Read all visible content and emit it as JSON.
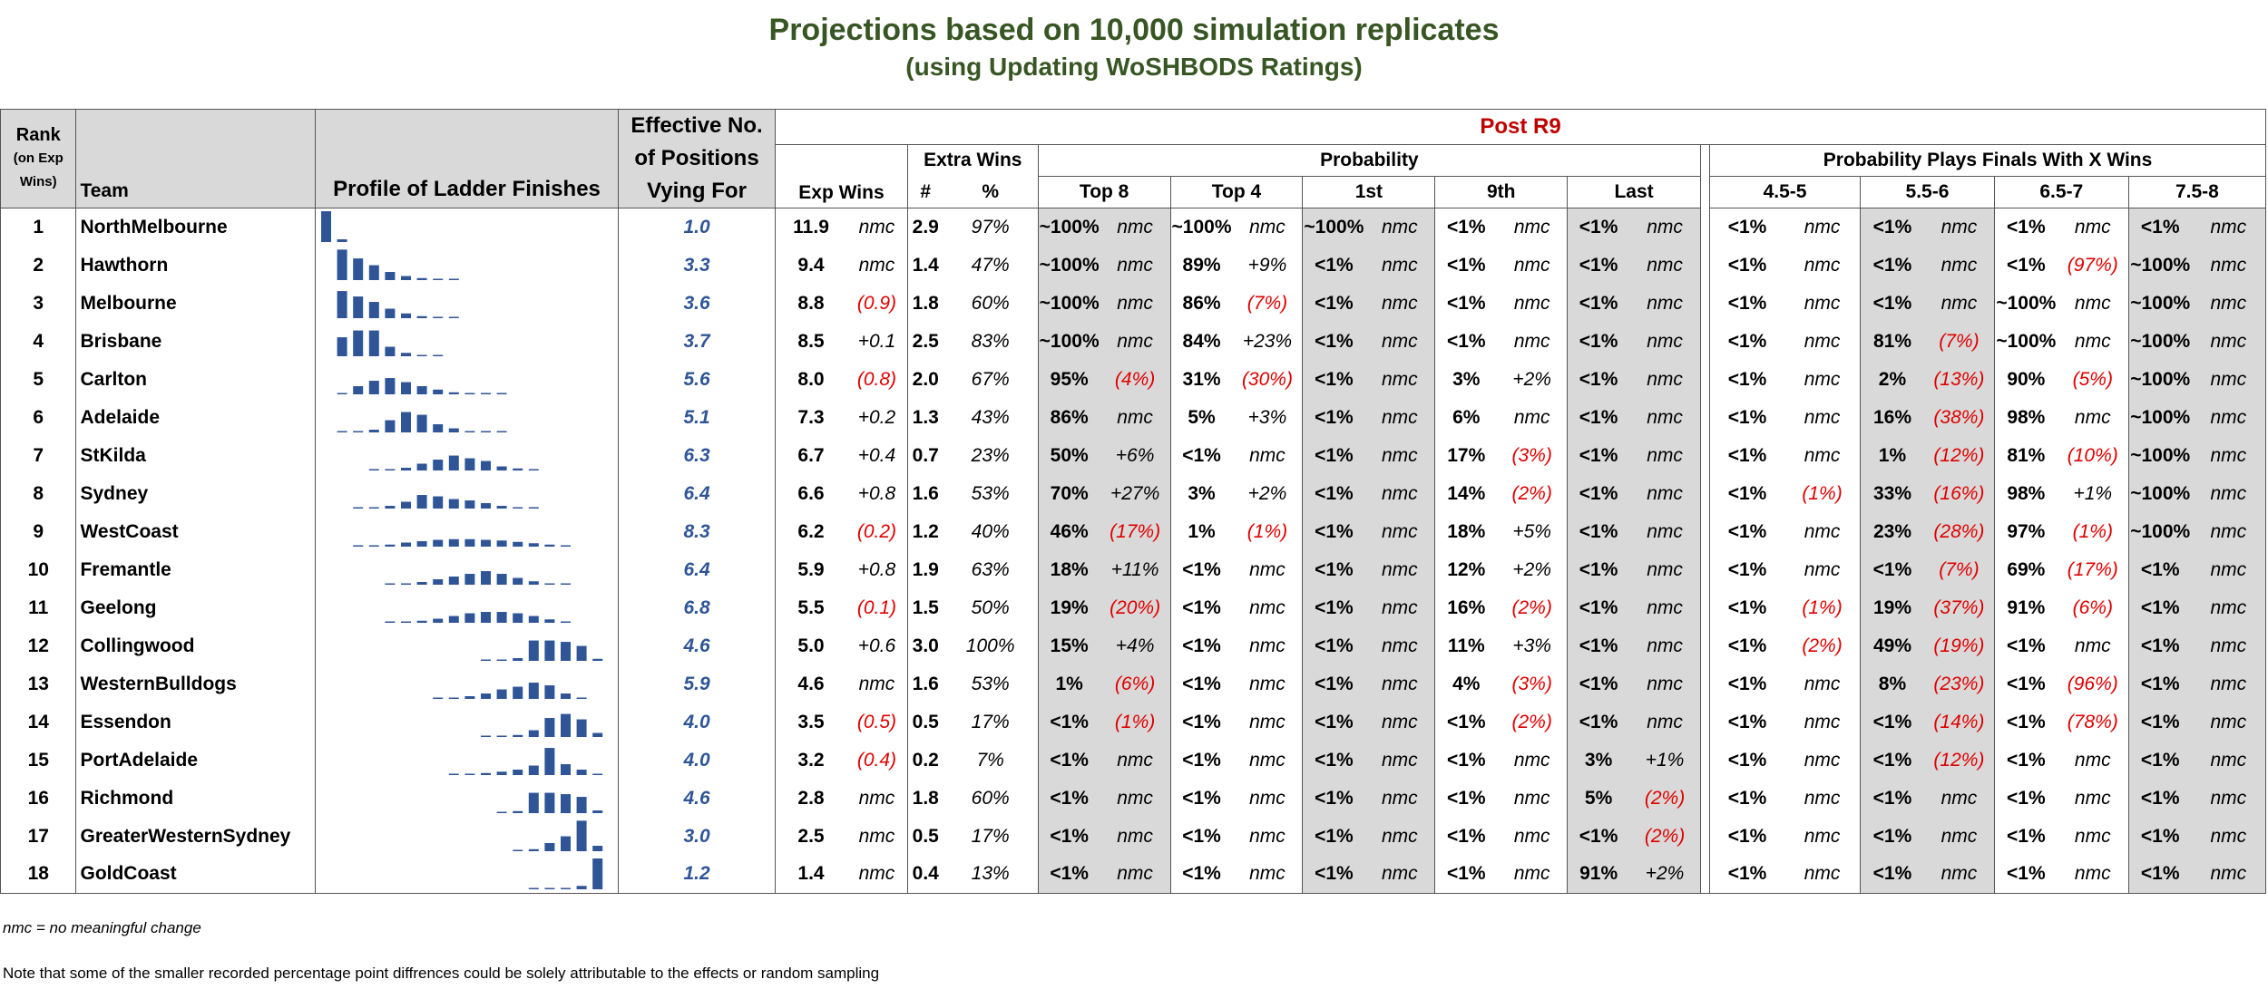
{
  "title": "Projections based on 10,000 simulation replicates",
  "subtitle": "(using Updating WoSHBODS Ratings)",
  "headers": {
    "rank_line1": "Rank",
    "rank_line2": "(on Exp",
    "rank_line3": "Wins)",
    "team": "Team",
    "profile": "Profile of Ladder Finishes",
    "eff_line1": "Effective No.",
    "eff_line2": "of Positions",
    "eff_line3": "Vying For",
    "post": "Post R9",
    "exp_wins": "Exp Wins",
    "extra_wins": "Extra Wins",
    "extra_num": "#",
    "extra_pct": "%",
    "probability": "Probability",
    "prob_cols": [
      "Top 8",
      "Top 4",
      "1st",
      "9th",
      "Last"
    ],
    "finals": "Probability Plays Finals With X Wins",
    "finals_cols": [
      "4.5-5",
      "5.5-6",
      "6.5-7",
      "7.5-8"
    ]
  },
  "rows": [
    {
      "rank": "1",
      "team": "NorthMelbourne",
      "eff": "1.0",
      "exp": "11.9",
      "exp_c": "nmc",
      "ew": "2.9",
      "ew_pct": "97%",
      "p": [
        [
          "~100%",
          "nmc"
        ],
        [
          "~100%",
          "nmc"
        ],
        [
          "~100%",
          "nmc"
        ],
        [
          "<1%",
          "nmc"
        ],
        [
          "<1%",
          "nmc"
        ]
      ],
      "f": [
        [
          "<1%",
          "nmc"
        ],
        [
          "<1%",
          "nmc"
        ],
        [
          "<1%",
          "nmc"
        ],
        [
          "<1%",
          "nmc"
        ]
      ],
      "profile": [
        100,
        4,
        0,
        0,
        0,
        0,
        0,
        0,
        0,
        0,
        0,
        0,
        0,
        0,
        0,
        0,
        0,
        0
      ]
    },
    {
      "rank": "2",
      "team": "Hawthorn",
      "eff": "3.3",
      "exp": "9.4",
      "exp_c": "nmc",
      "ew": "1.4",
      "ew_pct": "47%",
      "p": [
        [
          "~100%",
          "nmc"
        ],
        [
          "89%",
          "+9%"
        ],
        [
          "<1%",
          "nmc"
        ],
        [
          "<1%",
          "nmc"
        ],
        [
          "<1%",
          "nmc"
        ]
      ],
      "f": [
        [
          "<1%",
          "nmc"
        ],
        [
          "<1%",
          "nmc"
        ],
        [
          "<1%",
          "(97%)"
        ],
        [
          "~100%",
          "nmc"
        ]
      ],
      "profile": [
        0,
        45,
        32,
        22,
        12,
        6,
        3,
        2,
        1,
        0,
        0,
        0,
        0,
        0,
        0,
        0,
        0,
        0
      ]
    },
    {
      "rank": "3",
      "team": "Melbourne",
      "eff": "3.6",
      "exp": "8.8",
      "exp_c": "(0.9)",
      "ew": "1.8",
      "ew_pct": "60%",
      "p": [
        [
          "~100%",
          "nmc"
        ],
        [
          "86%",
          "(7%)"
        ],
        [
          "<1%",
          "nmc"
        ],
        [
          "<1%",
          "nmc"
        ],
        [
          "<1%",
          "nmc"
        ]
      ],
      "f": [
        [
          "<1%",
          "nmc"
        ],
        [
          "<1%",
          "nmc"
        ],
        [
          "~100%",
          "nmc"
        ],
        [
          "~100%",
          "nmc"
        ]
      ],
      "profile": [
        0,
        40,
        32,
        24,
        14,
        7,
        3,
        2,
        1,
        0,
        0,
        0,
        0,
        0,
        0,
        0,
        0,
        0
      ]
    },
    {
      "rank": "4",
      "team": "Brisbane",
      "eff": "3.7",
      "exp": "8.5",
      "exp_c": "+0.1",
      "ew": "2.5",
      "ew_pct": "83%",
      "p": [
        [
          "~100%",
          "nmc"
        ],
        [
          "84%",
          "+23%"
        ],
        [
          "<1%",
          "nmc"
        ],
        [
          "<1%",
          "nmc"
        ],
        [
          "<1%",
          "nmc"
        ]
      ],
      "f": [
        [
          "<1%",
          "nmc"
        ],
        [
          "81%",
          "(7%)"
        ],
        [
          "~100%",
          "nmc"
        ],
        [
          "~100%",
          "nmc"
        ]
      ],
      "profile": [
        0,
        28,
        38,
        38,
        14,
        5,
        2,
        1,
        0,
        0,
        0,
        0,
        0,
        0,
        0,
        0,
        0,
        0
      ]
    },
    {
      "rank": "5",
      "team": "Carlton",
      "eff": "5.6",
      "exp": "8.0",
      "exp_c": "(0.8)",
      "ew": "2.0",
      "ew_pct": "67%",
      "p": [
        [
          "95%",
          "(4%)"
        ],
        [
          "31%",
          "(30%)"
        ],
        [
          "<1%",
          "nmc"
        ],
        [
          "3%",
          "+2%"
        ],
        [
          "<1%",
          "nmc"
        ]
      ],
      "f": [
        [
          "<1%",
          "nmc"
        ],
        [
          "2%",
          "(13%)"
        ],
        [
          "90%",
          "(5%)"
        ],
        [
          "~100%",
          "nmc"
        ]
      ],
      "profile": [
        0,
        2,
        12,
        20,
        24,
        18,
        12,
        7,
        3,
        2,
        1,
        1,
        0,
        0,
        0,
        0,
        0,
        0
      ]
    },
    {
      "rank": "6",
      "team": "Adelaide",
      "eff": "5.1",
      "exp": "7.3",
      "exp_c": "+0.2",
      "ew": "1.3",
      "ew_pct": "43%",
      "p": [
        [
          "86%",
          "nmc"
        ],
        [
          "5%",
          "+3%"
        ],
        [
          "<1%",
          "nmc"
        ],
        [
          "6%",
          "nmc"
        ],
        [
          "<1%",
          "nmc"
        ]
      ],
      "f": [
        [
          "<1%",
          "nmc"
        ],
        [
          "16%",
          "(38%)"
        ],
        [
          "98%",
          "nmc"
        ],
        [
          "~100%",
          "nmc"
        ]
      ],
      "profile": [
        0,
        1,
        2,
        4,
        18,
        30,
        26,
        12,
        6,
        2,
        1,
        1,
        0,
        0,
        0,
        0,
        0,
        0
      ]
    },
    {
      "rank": "7",
      "team": "StKilda",
      "eff": "6.3",
      "exp": "6.7",
      "exp_c": "+0.4",
      "ew": "0.7",
      "ew_pct": "23%",
      "p": [
        [
          "50%",
          "+6%"
        ],
        [
          "<1%",
          "nmc"
        ],
        [
          "<1%",
          "nmc"
        ],
        [
          "17%",
          "(3%)"
        ],
        [
          "<1%",
          "nmc"
        ]
      ],
      "f": [
        [
          "<1%",
          "nmc"
        ],
        [
          "1%",
          "(12%)"
        ],
        [
          "81%",
          "(10%)"
        ],
        [
          "~100%",
          "nmc"
        ]
      ],
      "profile": [
        0,
        0,
        0,
        1,
        2,
        4,
        10,
        16,
        22,
        18,
        14,
        6,
        3,
        1,
        0,
        0,
        0,
        0
      ]
    },
    {
      "rank": "8",
      "team": "Sydney",
      "eff": "6.4",
      "exp": "6.6",
      "exp_c": "+0.8",
      "ew": "1.6",
      "ew_pct": "53%",
      "p": [
        [
          "70%",
          "+27%"
        ],
        [
          "3%",
          "+2%"
        ],
        [
          "<1%",
          "nmc"
        ],
        [
          "14%",
          "(2%)"
        ],
        [
          "<1%",
          "nmc"
        ]
      ],
      "f": [
        [
          "<1%",
          "(1%)"
        ],
        [
          "33%",
          "(16%)"
        ],
        [
          "98%",
          "+1%"
        ],
        [
          "~100%",
          "nmc"
        ]
      ],
      "profile": [
        0,
        0,
        1,
        2,
        4,
        10,
        20,
        18,
        14,
        12,
        8,
        4,
        2,
        1,
        0,
        0,
        0,
        0
      ]
    },
    {
      "rank": "9",
      "team": "WestCoast",
      "eff": "8.3",
      "exp": "6.2",
      "exp_c": "(0.2)",
      "ew": "1.2",
      "ew_pct": "40%",
      "p": [
        [
          "46%",
          "(17%)"
        ],
        [
          "1%",
          "(1%)"
        ],
        [
          "<1%",
          "nmc"
        ],
        [
          "18%",
          "+5%"
        ],
        [
          "<1%",
          "nmc"
        ]
      ],
      "f": [
        [
          "<1%",
          "nmc"
        ],
        [
          "23%",
          "(28%)"
        ],
        [
          "97%",
          "(1%)"
        ],
        [
          "~100%",
          "nmc"
        ]
      ],
      "profile": [
        0,
        0,
        1,
        2,
        3,
        6,
        8,
        10,
        11,
        11,
        10,
        9,
        7,
        5,
        3,
        1,
        0,
        0
      ]
    },
    {
      "rank": "10",
      "team": "Fremantle",
      "eff": "6.4",
      "exp": "5.9",
      "exp_c": "+0.8",
      "ew": "1.9",
      "ew_pct": "63%",
      "p": [
        [
          "18%",
          "+11%"
        ],
        [
          "<1%",
          "nmc"
        ],
        [
          "<1%",
          "nmc"
        ],
        [
          "12%",
          "+2%"
        ],
        [
          "<1%",
          "nmc"
        ]
      ],
      "f": [
        [
          "<1%",
          "nmc"
        ],
        [
          "<1%",
          "(7%)"
        ],
        [
          "69%",
          "(17%)"
        ],
        [
          "<1%",
          "nmc"
        ]
      ],
      "profile": [
        0,
        0,
        0,
        0,
        1,
        2,
        4,
        8,
        12,
        16,
        20,
        16,
        10,
        5,
        2,
        1,
        0,
        0
      ]
    },
    {
      "rank": "11",
      "team": "Geelong",
      "eff": "6.8",
      "exp": "5.5",
      "exp_c": "(0.1)",
      "ew": "1.5",
      "ew_pct": "50%",
      "p": [
        [
          "19%",
          "(20%)"
        ],
        [
          "<1%",
          "nmc"
        ],
        [
          "<1%",
          "nmc"
        ],
        [
          "16%",
          "(2%)"
        ],
        [
          "<1%",
          "nmc"
        ]
      ],
      "f": [
        [
          "<1%",
          "(1%)"
        ],
        [
          "19%",
          "(37%)"
        ],
        [
          "91%",
          "(6%)"
        ],
        [
          "<1%",
          "nmc"
        ]
      ],
      "profile": [
        0,
        0,
        0,
        0,
        1,
        2,
        3,
        6,
        10,
        14,
        16,
        16,
        14,
        10,
        5,
        2,
        0,
        0
      ]
    },
    {
      "rank": "12",
      "team": "Collingwood",
      "eff": "4.6",
      "exp": "5.0",
      "exp_c": "+0.6",
      "ew": "3.0",
      "ew_pct": "100%",
      "p": [
        [
          "15%",
          "+4%"
        ],
        [
          "<1%",
          "nmc"
        ],
        [
          "<1%",
          "nmc"
        ],
        [
          "11%",
          "+3%"
        ],
        [
          "<1%",
          "nmc"
        ]
      ],
      "f": [
        [
          "<1%",
          "(2%)"
        ],
        [
          "49%",
          "(19%)"
        ],
        [
          "<1%",
          "nmc"
        ],
        [
          "<1%",
          "nmc"
        ]
      ],
      "profile": [
        0,
        0,
        0,
        0,
        0,
        0,
        0,
        0,
        0,
        0,
        1,
        2,
        4,
        30,
        30,
        28,
        22,
        3
      ]
    },
    {
      "rank": "13",
      "team": "WesternBulldogs",
      "eff": "5.9",
      "exp": "4.6",
      "exp_c": "nmc",
      "ew": "1.6",
      "ew_pct": "53%",
      "p": [
        [
          "1%",
          "(6%)"
        ],
        [
          "<1%",
          "nmc"
        ],
        [
          "<1%",
          "nmc"
        ],
        [
          "4%",
          "(3%)"
        ],
        [
          "<1%",
          "nmc"
        ]
      ],
      "f": [
        [
          "<1%",
          "nmc"
        ],
        [
          "8%",
          "(23%)"
        ],
        [
          "<1%",
          "(96%)"
        ],
        [
          "<1%",
          "nmc"
        ]
      ],
      "profile": [
        0,
        0,
        0,
        0,
        0,
        0,
        0,
        1,
        2,
        4,
        8,
        14,
        18,
        24,
        20,
        8,
        2,
        0
      ]
    },
    {
      "rank": "14",
      "team": "Essendon",
      "eff": "4.0",
      "exp": "3.5",
      "exp_c": "(0.5)",
      "ew": "0.5",
      "ew_pct": "17%",
      "p": [
        [
          "<1%",
          "(1%)"
        ],
        [
          "<1%",
          "nmc"
        ],
        [
          "<1%",
          "nmc"
        ],
        [
          "<1%",
          "(2%)"
        ],
        [
          "<1%",
          "nmc"
        ]
      ],
      "f": [
        [
          "<1%",
          "nmc"
        ],
        [
          "<1%",
          "(14%)"
        ],
        [
          "<1%",
          "(78%)"
        ],
        [
          "<1%",
          "nmc"
        ]
      ],
      "profile": [
        0,
        0,
        0,
        0,
        0,
        0,
        0,
        0,
        0,
        0,
        1,
        2,
        3,
        10,
        28,
        34,
        26,
        6
      ]
    },
    {
      "rank": "15",
      "team": "PortAdelaide",
      "eff": "4.0",
      "exp": "3.2",
      "exp_c": "(0.4)",
      "ew": "0.2",
      "ew_pct": "7%",
      "p": [
        [
          "<1%",
          "nmc"
        ],
        [
          "<1%",
          "nmc"
        ],
        [
          "<1%",
          "nmc"
        ],
        [
          "<1%",
          "nmc"
        ],
        [
          "3%",
          "+1%"
        ]
      ],
      "f": [
        [
          "<1%",
          "nmc"
        ],
        [
          "<1%",
          "(12%)"
        ],
        [
          "<1%",
          "nmc"
        ],
        [
          "<1%",
          "nmc"
        ]
      ],
      "profile": [
        0,
        0,
        0,
        0,
        0,
        0,
        0,
        0,
        1,
        2,
        3,
        5,
        8,
        14,
        40,
        16,
        8,
        2
      ]
    },
    {
      "rank": "16",
      "team": "Richmond",
      "eff": "4.6",
      "exp": "2.8",
      "exp_c": "nmc",
      "ew": "1.8",
      "ew_pct": "60%",
      "p": [
        [
          "<1%",
          "nmc"
        ],
        [
          "<1%",
          "nmc"
        ],
        [
          "<1%",
          "nmc"
        ],
        [
          "<1%",
          "nmc"
        ],
        [
          "5%",
          "(2%)"
        ]
      ],
      "f": [
        [
          "<1%",
          "nmc"
        ],
        [
          "<1%",
          "nmc"
        ],
        [
          "<1%",
          "nmc"
        ],
        [
          "<1%",
          "nmc"
        ]
      ],
      "profile": [
        0,
        0,
        0,
        0,
        0,
        0,
        0,
        0,
        0,
        0,
        0,
        1,
        3,
        30,
        30,
        28,
        24,
        4
      ]
    },
    {
      "rank": "17",
      "team": "GreaterWesternSydney",
      "eff": "3.0",
      "exp": "2.5",
      "exp_c": "nmc",
      "ew": "0.5",
      "ew_pct": "17%",
      "p": [
        [
          "<1%",
          "nmc"
        ],
        [
          "<1%",
          "nmc"
        ],
        [
          "<1%",
          "nmc"
        ],
        [
          "<1%",
          "nmc"
        ],
        [
          "<1%",
          "(2%)"
        ]
      ],
      "f": [
        [
          "<1%",
          "nmc"
        ],
        [
          "<1%",
          "nmc"
        ],
        [
          "<1%",
          "nmc"
        ],
        [
          "<1%",
          "nmc"
        ]
      ],
      "profile": [
        0,
        0,
        0,
        0,
        0,
        0,
        0,
        0,
        0,
        0,
        0,
        0,
        1,
        3,
        12,
        22,
        45,
        8
      ]
    },
    {
      "rank": "18",
      "team": "GoldCoast",
      "eff": "1.2",
      "exp": "1.4",
      "exp_c": "nmc",
      "ew": "0.4",
      "ew_pct": "13%",
      "p": [
        [
          "<1%",
          "nmc"
        ],
        [
          "<1%",
          "nmc"
        ],
        [
          "<1%",
          "nmc"
        ],
        [
          "<1%",
          "nmc"
        ],
        [
          "91%",
          "+2%"
        ]
      ],
      "f": [
        [
          "<1%",
          "nmc"
        ],
        [
          "<1%",
          "nmc"
        ],
        [
          "<1%",
          "nmc"
        ],
        [
          "<1%",
          "nmc"
        ]
      ],
      "profile": [
        0,
        0,
        0,
        0,
        0,
        0,
        0,
        0,
        0,
        0,
        0,
        0,
        0,
        1,
        1,
        2,
        5,
        91
      ]
    }
  ],
  "footnote1": "nmc = no meaningful change",
  "footnote2": "Note that some of the smaller recorded percentage point diffrences could be solely attributable to the effects or random sampling",
  "colors": {
    "title": "#375623",
    "accent": "#c00000",
    "negative": "#e00000",
    "bar": "#2f5597",
    "shade": "#d9d9d9"
  }
}
